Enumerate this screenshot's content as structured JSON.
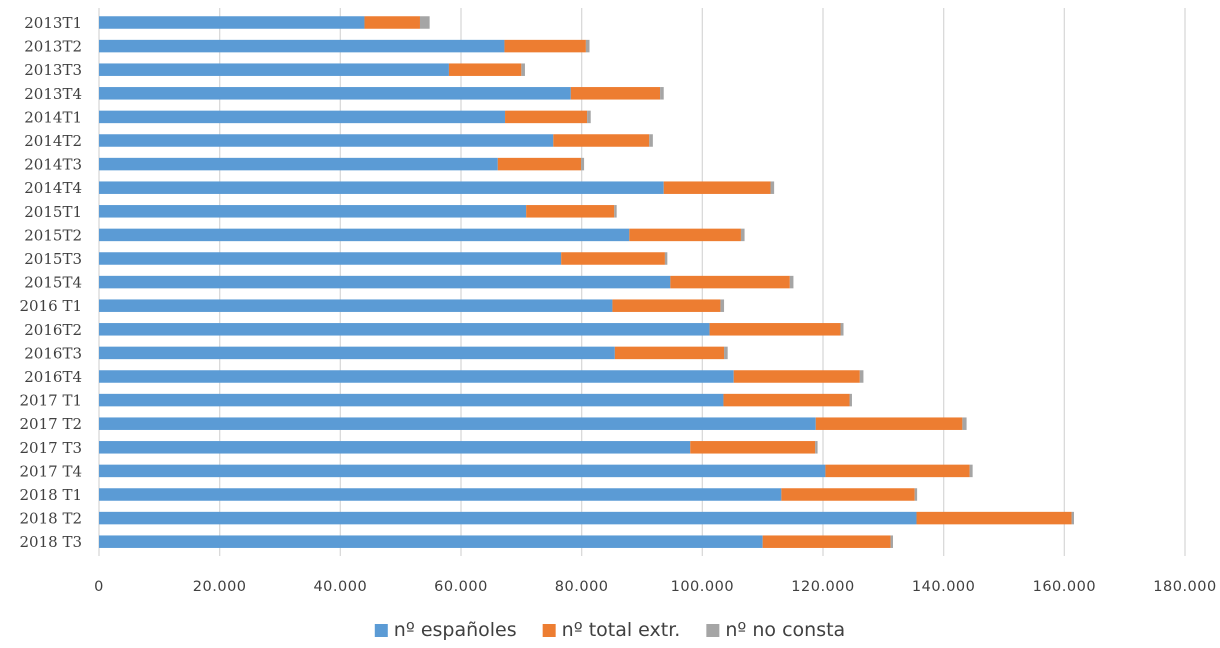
{
  "chart_data": {
    "type": "bar",
    "orientation": "horizontal",
    "stacked": true,
    "title": "",
    "xlabel": "",
    "ylabel": "",
    "xlim": [
      0,
      180000
    ],
    "grid": true,
    "legend_position": "bottom",
    "x_ticks": [
      "0",
      "20.000",
      "40.000",
      "60.000",
      "80.000",
      "100.000",
      "120.000",
      "140.000",
      "160.000",
      "180.000"
    ],
    "x_tick_values": [
      0,
      20000,
      40000,
      60000,
      80000,
      100000,
      120000,
      140000,
      160000,
      180000
    ],
    "categories": [
      "2013T1",
      "2013T2",
      "2013T3",
      "2013T4",
      "2014T1",
      "2014T2",
      "2014T3",
      "2014T4",
      "2015T1",
      "2015T2",
      "2015T3",
      "2015T4",
      "2016 T1",
      "2016T2",
      "2016T3",
      "2016T4",
      "2017 T1",
      "2017 T2",
      "2017 T3",
      "2017 T4",
      "2018 T1",
      "2018 T2",
      "2018 T3"
    ],
    "series": [
      {
        "name": "nº españoles",
        "color": "#5B9BD5",
        "values": [
          44000,
          67200,
          58000,
          78200,
          67300,
          75300,
          66100,
          93600,
          70800,
          87900,
          76600,
          94700,
          85100,
          101200,
          85500,
          105200,
          103500,
          118800,
          98000,
          120400,
          113100,
          135500,
          110000
        ]
      },
      {
        "name": "nº total extr.",
        "color": "#ED7D31",
        "values": [
          9200,
          13500,
          12000,
          14800,
          13600,
          15900,
          13800,
          17700,
          14600,
          18500,
          17200,
          19800,
          17900,
          21700,
          18100,
          20900,
          20900,
          24300,
          20700,
          23900,
          22100,
          25700,
          21200
        ]
      },
      {
        "name": "nº no consta",
        "color": "#A5A5A5",
        "values": [
          1600,
          600,
          600,
          600,
          600,
          600,
          500,
          600,
          400,
          600,
          400,
          600,
          600,
          500,
          600,
          600,
          400,
          700,
          400,
          500,
          400,
          400,
          400
        ]
      }
    ]
  }
}
